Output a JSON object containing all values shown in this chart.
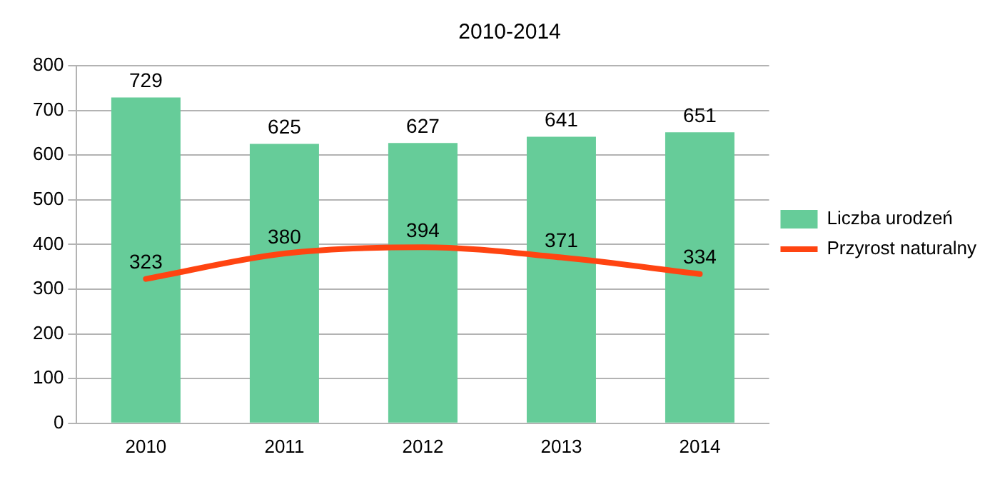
{
  "chart_data": {
    "type": "bar",
    "title": "2010-2014",
    "categories": [
      "2010",
      "2011",
      "2012",
      "2013",
      "2014"
    ],
    "series": [
      {
        "name": "Liczba urodzeń",
        "color": "#66cc99",
        "values": [
          729,
          625,
          627,
          641,
          651
        ]
      },
      {
        "name": "Przyrost naturalny",
        "type": "line",
        "color": "#ff4411",
        "values": [
          323,
          380,
          394,
          371,
          334
        ]
      }
    ],
    "ylim": [
      0,
      800
    ],
    "yticks": [
      0,
      100,
      200,
      300,
      400,
      500,
      600,
      700,
      800
    ],
    "grid": "y",
    "legend": "right",
    "data_labels": true,
    "marker": "none",
    "line_style": "solid"
  }
}
